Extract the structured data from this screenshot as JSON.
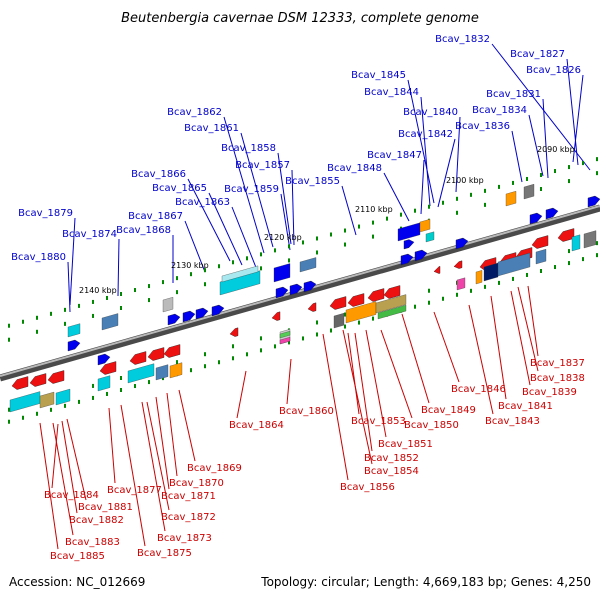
{
  "title": "Beutenbergia cavernae DSM 12333, complete genome",
  "footer": {
    "accession_label": "Accession:",
    "accession": "NC_012669",
    "topology_label": "Topology:",
    "topology": "circular",
    "length_label": "Length:",
    "length": "4,669,183 bp",
    "genes_label": "Genes:",
    "genes": "4,250"
  },
  "colors": {
    "forward_labels": "#0000cc",
    "reverse_labels": "#cc0000",
    "backbone": "#808080",
    "ticks": "#008800"
  },
  "scale_marks": [
    "2090 kbp",
    "2100 kbp",
    "2110 kbp",
    "2120 kbp",
    "2130 kbp",
    "2140 kbp"
  ],
  "forward_genes": [
    "Bcav_1832",
    "Bcav_1827",
    "Bcav_1826",
    "Bcav_1845",
    "Bcav_1844",
    "Bcav_1831",
    "Bcav_1840",
    "Bcav_1834",
    "Bcav_1836",
    "Bcav_1842",
    "Bcav_1862",
    "Bcav_1861",
    "Bcav_1858",
    "Bcav_1847",
    "Bcav_1857",
    "Bcav_1848",
    "Bcav_1866",
    "Bcav_1855",
    "Bcav_1865",
    "Bcav_1859",
    "Bcav_1863",
    "Bcav_1879",
    "Bcav_1867",
    "Bcav_1874",
    "Bcav_1868",
    "Bcav_1880"
  ],
  "reverse_genes": [
    "Bcav_1837",
    "Bcav_1838",
    "Bcav_1839",
    "Bcav_1846",
    "Bcav_1841",
    "Bcav_1849",
    "Bcav_1843",
    "Bcav_1860",
    "Bcav_1864",
    "Bcav_1853",
    "Bcav_1850",
    "Bcav_1851",
    "Bcav_1852",
    "Bcav_1869",
    "Bcav_1854",
    "Bcav_1870",
    "Bcav_1856",
    "Bcav_1884",
    "Bcav_1877",
    "Bcav_1871",
    "Bcav_1881",
    "Bcav_1882",
    "Bcav_1872",
    "Bcav_1873",
    "Bcav_1883",
    "Bcav_1885",
    "Bcav_1875"
  ]
}
